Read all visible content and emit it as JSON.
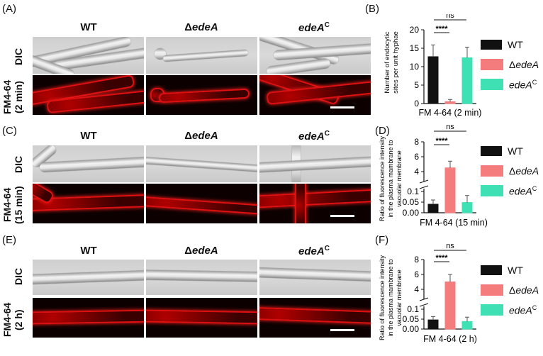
{
  "panels": {
    "A": "(A)",
    "B": "(B)",
    "C": "(C)",
    "D": "(D)",
    "E": "(E)",
    "F": "(F)"
  },
  "micro": {
    "col_wt": "WT",
    "col_delta": "Δ",
    "col_delta_gene": "edeA",
    "col_comp_gene": "edeA",
    "col_comp_sup": "C",
    "row_dic": "DIC",
    "A_fm_l1": "FM4-64",
    "A_fm_l2": "(2 min)",
    "C_fm_l1": "FM4-64",
    "C_fm_l2": "(15 min)",
    "E_fm_l1": "FM4-64",
    "E_fm_l2": "(2 h)"
  },
  "legend": {
    "wt": "WT",
    "delta_prefix": "Δ",
    "delta_gene": "edeA",
    "comp_gene": "edeA",
    "comp_sup": "C",
    "colors": {
      "wt": "#111111",
      "delta": "#f47c7c",
      "comp": "#3ee0b4"
    }
  },
  "chart_data": [
    {
      "id": "B",
      "type": "bar",
      "ylabel_l1": "Number of endocytic",
      "ylabel_l2": "sites per unit hyphae",
      "xlabel": "FM 4-64 (2 min)",
      "ylim": [
        0,
        20
      ],
      "yticks": [
        "0",
        "5",
        "10",
        "15",
        "20"
      ],
      "series": [
        {
          "name": "WT",
          "value": 12.7,
          "error": 3.2
        },
        {
          "name": "ΔedeA",
          "value": 0.5,
          "error": 0.6
        },
        {
          "name": "edeAC",
          "value": 12.4,
          "error": 2.9
        }
      ],
      "annotations": [
        "****",
        "ns"
      ]
    },
    {
      "id": "D",
      "type": "bar",
      "ylabel_l1": "Ratio of fluorescence intensity",
      "ylabel_l2": "in the plasma mambrane to",
      "ylabel_l3": "vacuolar membrane",
      "xlabel": "FM 4-64 (15 min)",
      "broken_axis": true,
      "yticks_upper": [
        "8",
        "6",
        "4"
      ],
      "yticks_lower": [
        "0.1",
        "0.05",
        "0.00"
      ],
      "series": [
        {
          "name": "WT",
          "value": 0.04,
          "error": 0.02
        },
        {
          "name": "ΔedeA",
          "value": 4.5,
          "error": 0.9
        },
        {
          "name": "edeAC",
          "value": 0.048,
          "error": 0.033
        }
      ],
      "annotations": [
        "****",
        "ns"
      ]
    },
    {
      "id": "F",
      "type": "bar",
      "ylabel_l1": "Ratio of fluorescence intensity",
      "ylabel_l2": "in the plasma mambrane to",
      "ylabel_l3": "vacuolar membrane",
      "xlabel": "FM 4-64 (2 h)",
      "broken_axis": true,
      "yticks_upper": [
        "8",
        "6",
        "4"
      ],
      "yticks_lower": [
        "0.1",
        "0.05",
        "0.00"
      ],
      "series": [
        {
          "name": "WT",
          "value": 0.046,
          "error": 0.017
        },
        {
          "name": "ΔedeA",
          "value": 5.0,
          "error": 1.0
        },
        {
          "name": "edeAC",
          "value": 0.038,
          "error": 0.022
        }
      ],
      "annotations": [
        "****",
        "ns"
      ]
    }
  ]
}
